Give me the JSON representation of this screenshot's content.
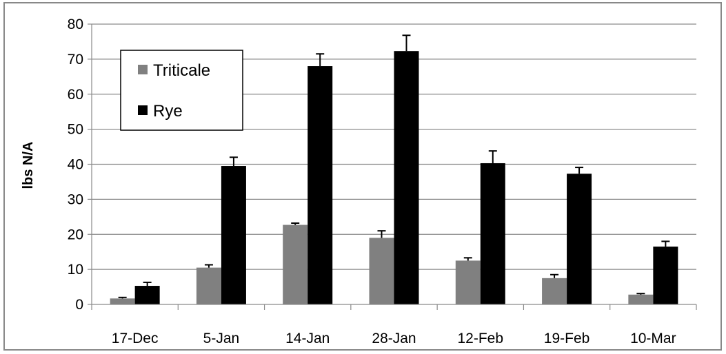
{
  "chart_data": {
    "type": "bar",
    "title": "",
    "xlabel": "",
    "ylabel": "lbs N/A",
    "ylim": [
      0,
      80
    ],
    "yticks": [
      0,
      10,
      20,
      30,
      40,
      50,
      60,
      70,
      80
    ],
    "grid": true,
    "legend_position": "top-left",
    "categories": [
      "17-Dec",
      "5-Jan",
      "14-Jan",
      "28-Jan",
      "12-Feb",
      "19-Feb",
      "10-Mar"
    ],
    "series": [
      {
        "name": "Triticale",
        "color": "#808080",
        "values": [
          1.7,
          10.5,
          22.7,
          19.0,
          12.5,
          7.5,
          2.8
        ],
        "error": [
          0.3,
          0.8,
          0.5,
          2.0,
          0.8,
          1.0,
          0.3
        ]
      },
      {
        "name": "Rye",
        "color": "#000000",
        "values": [
          5.3,
          39.5,
          68.0,
          72.3,
          40.3,
          37.3,
          16.5
        ],
        "error": [
          1.0,
          2.5,
          3.5,
          4.5,
          3.5,
          1.8,
          1.5
        ]
      }
    ]
  }
}
